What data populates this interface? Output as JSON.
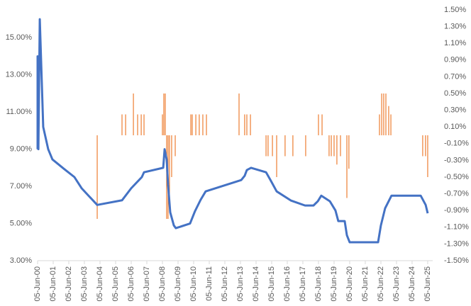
{
  "chart_data": {
    "type": "combo",
    "xlim": [
      2000.43,
      2025.75
    ],
    "xticks": [
      {
        "value": 2000.43,
        "label": "05-Jun-00"
      },
      {
        "value": 2001.43,
        "label": "05-Jun-01"
      },
      {
        "value": 2002.43,
        "label": "05-Jun-02"
      },
      {
        "value": 2003.43,
        "label": "05-Jun-03"
      },
      {
        "value": 2004.43,
        "label": "05-Jun-04"
      },
      {
        "value": 2005.43,
        "label": "05-Jun-05"
      },
      {
        "value": 2006.43,
        "label": "05-Jun-06"
      },
      {
        "value": 2007.43,
        "label": "05-Jun-07"
      },
      {
        "value": 2008.43,
        "label": "05-Jun-08"
      },
      {
        "value": 2009.43,
        "label": "05-Jun-09"
      },
      {
        "value": 2010.43,
        "label": "05-Jun-10"
      },
      {
        "value": 2011.43,
        "label": "05-Jun-11"
      },
      {
        "value": 2012.43,
        "label": "05-Jun-12"
      },
      {
        "value": 2013.43,
        "label": "05-Jun-13"
      },
      {
        "value": 2014.43,
        "label": "05-Jun-14"
      },
      {
        "value": 2015.43,
        "label": "05-Jun-15"
      },
      {
        "value": 2016.43,
        "label": "05-Jun-16"
      },
      {
        "value": 2017.43,
        "label": "05-Jun-17"
      },
      {
        "value": 2018.43,
        "label": "05-Jun-18"
      },
      {
        "value": 2019.43,
        "label": "05-Jun-19"
      },
      {
        "value": 2020.43,
        "label": "05-Jun-20"
      },
      {
        "value": 2021.43,
        "label": "05-Jun-21"
      },
      {
        "value": 2022.43,
        "label": "05-Jun-22"
      },
      {
        "value": 2023.43,
        "label": "05-Jun-23"
      },
      {
        "value": 2024.43,
        "label": "05-Jun-24"
      },
      {
        "value": 2025.43,
        "label": "05-Jun-25"
      }
    ],
    "ylim": [
      3,
      16.5
    ],
    "yticks": [
      {
        "value": 3,
        "label": "3.00%"
      },
      {
        "value": 5,
        "label": "5.00%"
      },
      {
        "value": 7,
        "label": "7.00%"
      },
      {
        "value": 9,
        "label": "9.00%"
      },
      {
        "value": 11,
        "label": "11.00%"
      },
      {
        "value": 13,
        "label": "13.00%"
      },
      {
        "value": 15,
        "label": "15.00%"
      }
    ],
    "y2lim": [
      -1.5,
      1.5
    ],
    "y2ticks": [
      {
        "value": 1.5,
        "label": "1.50%"
      },
      {
        "value": 1.3,
        "label": "1.30%"
      },
      {
        "value": 1.1,
        "label": "1.10%"
      },
      {
        "value": 0.9,
        "label": "0.90%"
      },
      {
        "value": 0.7,
        "label": "0.70%"
      },
      {
        "value": 0.5,
        "label": "0.50%"
      },
      {
        "value": 0.3,
        "label": "0.30%"
      },
      {
        "value": 0.1,
        "label": "0.10%"
      },
      {
        "value": -0.1,
        "label": "-0.10%"
      },
      {
        "value": -0.3,
        "label": "-0.30%"
      },
      {
        "value": -0.5,
        "label": "-0.50%"
      },
      {
        "value": -0.7,
        "label": "-0.70%"
      },
      {
        "value": -0.9,
        "label": "-0.90%"
      },
      {
        "value": -1.1,
        "label": "-1.10%"
      },
      {
        "value": -1.3,
        "label": "-1.30%"
      },
      {
        "value": -1.5,
        "label": "-1.50%"
      }
    ],
    "series": [
      {
        "type": "line",
        "color": "#4472c4",
        "x": [
          2000.43,
          2000.43,
          2000.48,
          2000.57,
          2000.79,
          2001.11,
          2001.38,
          2002.11,
          2002.79,
          2003.25,
          2004.25,
          2005.84,
          2006.43,
          2007.11,
          2007.25,
          2008.48,
          2008.57,
          2008.7,
          2008.79,
          2008.93,
          2009.16,
          2009.29,
          2010.2,
          2010.52,
          2010.88,
          2011.2,
          2013.48,
          2013.7,
          2013.84,
          2014.11,
          2015.07,
          2015.38,
          2015.75,
          2016.66,
          2017.57,
          2018.11,
          2018.39,
          2018.61,
          2019.16,
          2019.52,
          2019.7,
          2020.11,
          2020.25,
          2020.43,
          2022.25,
          2022.43,
          2022.7,
          2023.11,
          2024.98,
          2025.3,
          2025.43
        ],
        "values": [
          9.0,
          14.0,
          9.0,
          16.0,
          10.2,
          9.0,
          8.45,
          7.95,
          7.5,
          6.9,
          6.0,
          6.25,
          6.9,
          7.5,
          7.76,
          8.0,
          9.0,
          8.45,
          7.1,
          5.6,
          4.9,
          4.75,
          5.0,
          5.67,
          6.28,
          6.73,
          7.34,
          7.57,
          7.88,
          8.0,
          7.76,
          7.3,
          6.73,
          6.24,
          5.97,
          5.97,
          6.2,
          6.5,
          6.2,
          5.7,
          5.13,
          5.13,
          4.37,
          3.99,
          3.99,
          4.9,
          5.82,
          6.5,
          6.5,
          6.0,
          5.55
        ]
      },
      {
        "type": "bar",
        "axis": "y2",
        "color": "#ed7d31",
        "x": [
          2004.25,
          2005.84,
          2006.07,
          2006.57,
          2006.84,
          2007.07,
          2007.25,
          2008.43,
          2008.52,
          2008.61,
          2008.7,
          2008.79,
          2008.88,
          2009.02,
          2009.25,
          2010.25,
          2010.34,
          2010.57,
          2010.79,
          2011.02,
          2011.25,
          2013.34,
          2013.7,
          2013.84,
          2014.07,
          2015.07,
          2015.2,
          2015.48,
          2015.75,
          2016.29,
          2016.79,
          2017.61,
          2018.43,
          2018.66,
          2019.11,
          2019.25,
          2019.43,
          2019.61,
          2019.84,
          2020.25,
          2020.38,
          2022.34,
          2022.48,
          2022.61,
          2022.75,
          2022.93,
          2023.07,
          2025.11,
          2025.29,
          2025.43
        ],
        "values": [
          -1.0,
          0.25,
          0.25,
          0.5,
          0.25,
          0.25,
          0.25,
          0.25,
          0.5,
          0.5,
          -1.0,
          -1.0,
          -0.75,
          -0.5,
          -0.25,
          0.25,
          0.25,
          0.25,
          0.25,
          0.25,
          0.25,
          0.5,
          0.25,
          0.25,
          0.25,
          -0.25,
          -0.25,
          -0.25,
          -0.5,
          -0.25,
          -0.25,
          -0.25,
          0.25,
          0.25,
          -0.25,
          -0.25,
          -0.25,
          -0.35,
          -0.25,
          -0.75,
          -0.4,
          0.25,
          0.5,
          0.5,
          0.5,
          0.35,
          0.25,
          -0.25,
          -0.25,
          -0.5
        ]
      }
    ]
  }
}
